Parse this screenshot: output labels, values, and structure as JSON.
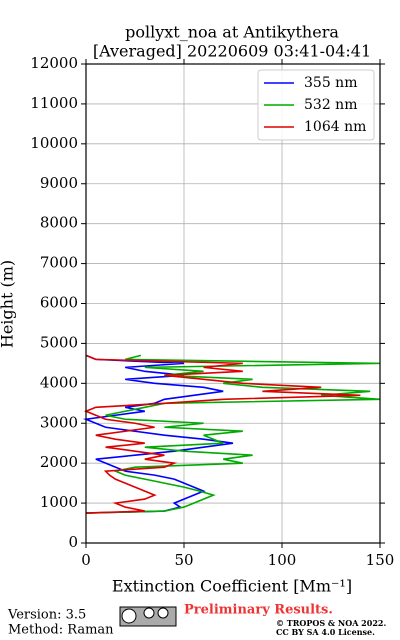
{
  "chart_data": {
    "type": "line",
    "title": "pollyxt_noa at Antikythera",
    "subtitle": "[Averaged] 20220609 03:41-04:41",
    "x_label": "Extinction Coefficient [Mm⁻¹]",
    "y_label": "Height (m)",
    "y": [
      750,
      800,
      900,
      1000,
      1100,
      1200,
      1300,
      1400,
      1500,
      1600,
      1700,
      1800,
      1900,
      2000,
      2100,
      2200,
      2300,
      2400,
      2500,
      2600,
      2700,
      2800,
      2900,
      3000,
      3100,
      3200,
      3300,
      3400,
      3500,
      3600,
      3700,
      3800,
      3900,
      4000,
      4100,
      4200,
      4300,
      4400,
      4500,
      4600,
      4700
    ],
    "series": [
      {
        "name": "355 nm",
        "color": "#0000ff",
        "values": [
          0,
          40,
          48,
          45,
          50,
          55,
          60,
          55,
          50,
          45,
          35,
          20,
          15,
          10,
          5,
          25,
          45,
          60,
          75,
          60,
          40,
          25,
          10,
          5,
          0,
          15,
          30,
          20,
          35,
          40,
          55,
          70,
          60,
          35,
          20,
          50,
          30,
          20,
          50,
          5,
          0
        ]
      },
      {
        "name": "532 nm",
        "color": "#00aa00",
        "values": [
          0,
          40,
          50,
          55,
          60,
          65,
          58,
          50,
          40,
          30,
          20,
          15,
          25,
          80,
          70,
          85,
          50,
          30,
          70,
          65,
          60,
          80,
          40,
          60,
          20,
          10,
          20,
          30,
          40,
          150,
          120,
          145,
          90,
          70,
          85,
          40,
          60,
          30,
          150,
          20,
          28
        ]
      },
      {
        "name": "1064 nm",
        "color": "#dd0000",
        "values": [
          0,
          30,
          20,
          15,
          30,
          35,
          30,
          25,
          20,
          15,
          12,
          10,
          40,
          45,
          30,
          40,
          25,
          10,
          30,
          15,
          5,
          20,
          35,
          25,
          10,
          5,
          0,
          5,
          40,
          70,
          140,
          90,
          120,
          80,
          60,
          40,
          80,
          60,
          80,
          5,
          0
        ]
      }
    ],
    "xlim": [
      0,
      150
    ],
    "xticks": [
      0,
      50,
      100,
      150
    ],
    "ylim": [
      0,
      12000
    ],
    "yticks": [
      0,
      1000,
      2000,
      3000,
      4000,
      5000,
      6000,
      7000,
      8000,
      9000,
      10000,
      11000,
      12000
    ],
    "grid": true,
    "legend_position": "upper right"
  },
  "footer": {
    "version": "Version: 3.5",
    "method": "Method: Raman",
    "status": "Preliminary Results.",
    "copyright": "© TROPOS & NOA 2022.",
    "license": "CC BY SA 4.0 License."
  }
}
